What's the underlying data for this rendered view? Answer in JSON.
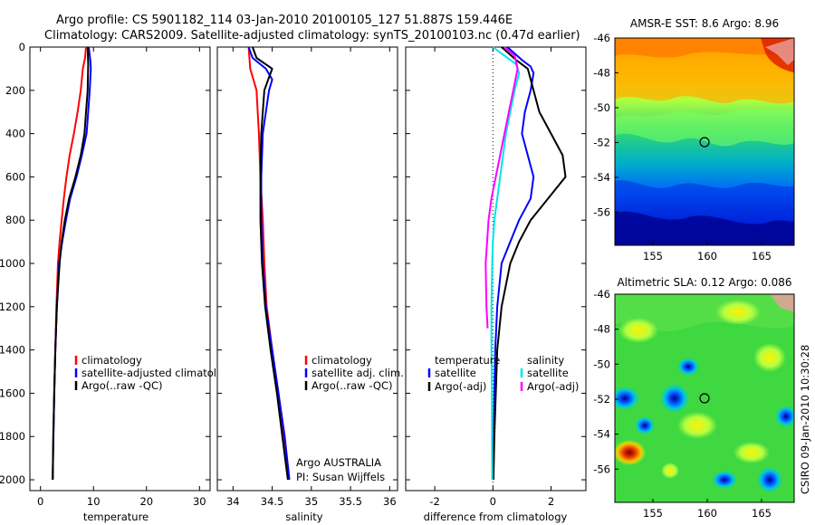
{
  "header": {
    "title_line1": "Argo profile: CS 5901182_114 03-Jan-2010 20100105_127 51.887S 159.446E",
    "title_line2": "Climatology: CARS2009. Satellite-adjusted climatology: synTS_20100103.nc (0.47d earlier)"
  },
  "colors": {
    "climatology": "#ff0000",
    "satellite": "#0000ff",
    "argo": "#000000",
    "salinity_satellite": "#00e5e5",
    "salinity_argo": "#ff00ff"
  },
  "chart_data": [
    {
      "type": "line",
      "id": "temperature",
      "xlabel": "temperature",
      "ylabel": "",
      "xlim": [
        -2,
        32
      ],
      "ylim": [
        2050,
        0
      ],
      "y_reversed": true,
      "xticks": [
        "0",
        "10",
        "20",
        "30"
      ],
      "yticks": [
        "0",
        "200",
        "400",
        "600",
        "800",
        "1000",
        "1200",
        "1400",
        "1600",
        "1800",
        "2000"
      ],
      "legend": [
        "climatology",
        "satellite-adjusted climatology",
        "Argo(..raw -QC)"
      ],
      "series": [
        {
          "name": "climatology",
          "color": "#ff0000",
          "points": [
            [
              8.6,
              0
            ],
            [
              8.4,
              50
            ],
            [
              8.0,
              100
            ],
            [
              7.6,
              200
            ],
            [
              7.0,
              300
            ],
            [
              6.3,
              400
            ],
            [
              5.5,
              500
            ],
            [
              4.9,
              600
            ],
            [
              4.4,
              700
            ],
            [
              4.0,
              800
            ],
            [
              3.6,
              900
            ],
            [
              3.3,
              1000
            ],
            [
              3.0,
              1200
            ],
            [
              2.8,
              1400
            ],
            [
              2.6,
              1600
            ],
            [
              2.45,
              1800
            ],
            [
              2.3,
              2000
            ]
          ]
        },
        {
          "name": "satellite-adjusted climatology",
          "color": "#0000ff",
          "points": [
            [
              9.1,
              0
            ],
            [
              9.4,
              60
            ],
            [
              9.5,
              100
            ],
            [
              9.3,
              200
            ],
            [
              9.0,
              300
            ],
            [
              8.7,
              400
            ],
            [
              7.8,
              500
            ],
            [
              6.8,
              600
            ],
            [
              5.6,
              700
            ],
            [
              4.8,
              800
            ],
            [
              4.1,
              900
            ],
            [
              3.5,
              1000
            ],
            [
              3.1,
              1200
            ],
            [
              2.8,
              1400
            ],
            [
              2.6,
              1600
            ],
            [
              2.45,
              1800
            ],
            [
              2.3,
              2000
            ]
          ]
        },
        {
          "name": "Argo(..raw -QC)",
          "color": "#000000",
          "points": [
            [
              8.9,
              0
            ],
            [
              9.0,
              80
            ],
            [
              8.9,
              200
            ],
            [
              8.6,
              300
            ],
            [
              8.3,
              400
            ],
            [
              7.6,
              500
            ],
            [
              6.6,
              600
            ],
            [
              5.4,
              700
            ],
            [
              4.6,
              800
            ],
            [
              4.0,
              900
            ],
            [
              3.6,
              1000
            ],
            [
              3.1,
              1200
            ],
            [
              2.8,
              1400
            ],
            [
              2.6,
              1600
            ],
            [
              2.4,
              1800
            ],
            [
              2.3,
              2000
            ]
          ]
        }
      ]
    },
    {
      "type": "line",
      "id": "salinity",
      "xlabel": "salinity",
      "xlim": [
        33.8,
        36.1
      ],
      "ylim": [
        2050,
        0
      ],
      "y_reversed": true,
      "xticks": [
        "34",
        "34.5",
        "35",
        "35.5",
        "36"
      ],
      "legend": [
        "climatology",
        "satellite adj. clim.",
        "Argo(..raw -QC)"
      ],
      "annotations": [
        "Argo AUSTRALIA",
        "PI: Susan Wijffels"
      ],
      "series": [
        {
          "name": "climatology",
          "color": "#ff0000",
          "points": [
            [
              34.2,
              0
            ],
            [
              34.22,
              100
            ],
            [
              34.3,
              200
            ],
            [
              34.33,
              400
            ],
            [
              34.35,
              600
            ],
            [
              34.38,
              800
            ],
            [
              34.4,
              1000
            ],
            [
              34.43,
              1200
            ],
            [
              34.5,
              1400
            ],
            [
              34.58,
              1600
            ],
            [
              34.65,
              1800
            ],
            [
              34.71,
              2000
            ]
          ]
        },
        {
          "name": "satellite adj. clim.",
          "color": "#0000ff",
          "points": [
            [
              34.2,
              0
            ],
            [
              34.25,
              50
            ],
            [
              34.42,
              100
            ],
            [
              34.5,
              150
            ],
            [
              34.46,
              200
            ],
            [
              34.42,
              300
            ],
            [
              34.38,
              400
            ],
            [
              34.36,
              600
            ],
            [
              34.36,
              800
            ],
            [
              34.38,
              1000
            ],
            [
              34.42,
              1200
            ],
            [
              34.5,
              1400
            ],
            [
              34.58,
              1600
            ],
            [
              34.66,
              1800
            ],
            [
              34.72,
              2000
            ]
          ]
        },
        {
          "name": "Argo(..raw -QC)",
          "color": "#000000",
          "points": [
            [
              34.25,
              0
            ],
            [
              34.3,
              50
            ],
            [
              34.5,
              100
            ],
            [
              34.45,
              150
            ],
            [
              34.4,
              200
            ],
            [
              34.38,
              300
            ],
            [
              34.36,
              400
            ],
            [
              34.35,
              600
            ],
            [
              34.35,
              800
            ],
            [
              34.37,
              1000
            ],
            [
              34.41,
              1200
            ],
            [
              34.48,
              1400
            ],
            [
              34.56,
              1600
            ],
            [
              34.63,
              1800
            ],
            [
              34.7,
              2000
            ]
          ]
        }
      ]
    },
    {
      "type": "line",
      "id": "difference",
      "xlabel": "difference from climatology",
      "xlim": [
        -3,
        3.2
      ],
      "ylim": [
        2050,
        0
      ],
      "y_reversed": true,
      "xticks": [
        "-2",
        "0",
        "2"
      ],
      "legend_left_title": "temperature",
      "legend_right_title": "salinity",
      "legend": [
        "satellite",
        "Argo(-adj)",
        "satellite",
        "Argo(-adj)"
      ],
      "series": [
        {
          "name": "temperature satellite",
          "color": "#0000ff",
          "points": [
            [
              0.5,
              0
            ],
            [
              1.0,
              60
            ],
            [
              1.3,
              90
            ],
            [
              1.4,
              120
            ],
            [
              1.3,
              200
            ],
            [
              1.1,
              300
            ],
            [
              1.0,
              400
            ],
            [
              1.2,
              500
            ],
            [
              1.4,
              600
            ],
            [
              1.3,
              700
            ],
            [
              0.9,
              800
            ],
            [
              0.6,
              900
            ],
            [
              0.3,
              1000
            ],
            [
              0.15,
              1200
            ],
            [
              0.08,
              1400
            ],
            [
              0.05,
              1600
            ],
            [
              0.03,
              1800
            ],
            [
              0.02,
              2000
            ]
          ]
        },
        {
          "name": "temperature Argo(-adj)",
          "color": "#000000",
          "points": [
            [
              0.3,
              0
            ],
            [
              0.8,
              60
            ],
            [
              1.2,
              100
            ],
            [
              1.4,
              200
            ],
            [
              1.6,
              300
            ],
            [
              2.0,
              400
            ],
            [
              2.4,
              500
            ],
            [
              2.5,
              600
            ],
            [
              1.9,
              700
            ],
            [
              1.3,
              800
            ],
            [
              0.9,
              900
            ],
            [
              0.6,
              1000
            ],
            [
              0.3,
              1200
            ],
            [
              0.15,
              1400
            ],
            [
              0.1,
              1600
            ],
            [
              0.05,
              1800
            ],
            [
              0.02,
              2000
            ]
          ]
        },
        {
          "name": "salinity satellite",
          "color": "#00e5e5",
          "points": [
            [
              0.0,
              0
            ],
            [
              0.8,
              80
            ],
            [
              0.9,
              120
            ],
            [
              0.75,
              200
            ],
            [
              0.6,
              300
            ],
            [
              0.45,
              400
            ],
            [
              0.35,
              500
            ],
            [
              0.25,
              600
            ],
            [
              0.15,
              700
            ],
            [
              0.05,
              800
            ],
            [
              0.0,
              900
            ],
            [
              -0.02,
              1000
            ],
            [
              -0.05,
              1200
            ],
            [
              -0.05,
              1400
            ],
            [
              -0.03,
              1600
            ],
            [
              -0.03,
              1800
            ],
            [
              -0.02,
              2000
            ]
          ]
        },
        {
          "name": "salinity Argo(-adj)",
          "color": "#ff00ff",
          "points": [
            [
              0.4,
              0
            ],
            [
              0.75,
              40
            ],
            [
              0.85,
              100
            ],
            [
              0.7,
              200
            ],
            [
              0.55,
              300
            ],
            [
              0.4,
              400
            ],
            [
              0.25,
              500
            ],
            [
              0.1,
              600
            ],
            [
              -0.05,
              700
            ],
            [
              -0.15,
              800
            ],
            [
              -0.2,
              900
            ],
            [
              -0.25,
              1000
            ],
            [
              -0.22,
              1200
            ],
            [
              -0.18,
              1300
            ]
          ]
        }
      ]
    }
  ],
  "maps": {
    "sst": {
      "title": "AMSR-E SST: 8.6 Argo: 8.96",
      "yticks": [
        "-46",
        "-48",
        "-50",
        "-52",
        "-54",
        "-56"
      ],
      "xticks": [
        "155",
        "160",
        "165"
      ]
    },
    "sla": {
      "title": "Altimetric SLA: 0.12 Argo: 0.086",
      "yticks": [
        "-46",
        "-48",
        "-50",
        "-52",
        "-54",
        "-56"
      ],
      "xticks": [
        "155",
        "160",
        "165"
      ]
    }
  },
  "footer": {
    "stamp": "CSIRO 09-Jan-2010 10:30:28"
  }
}
